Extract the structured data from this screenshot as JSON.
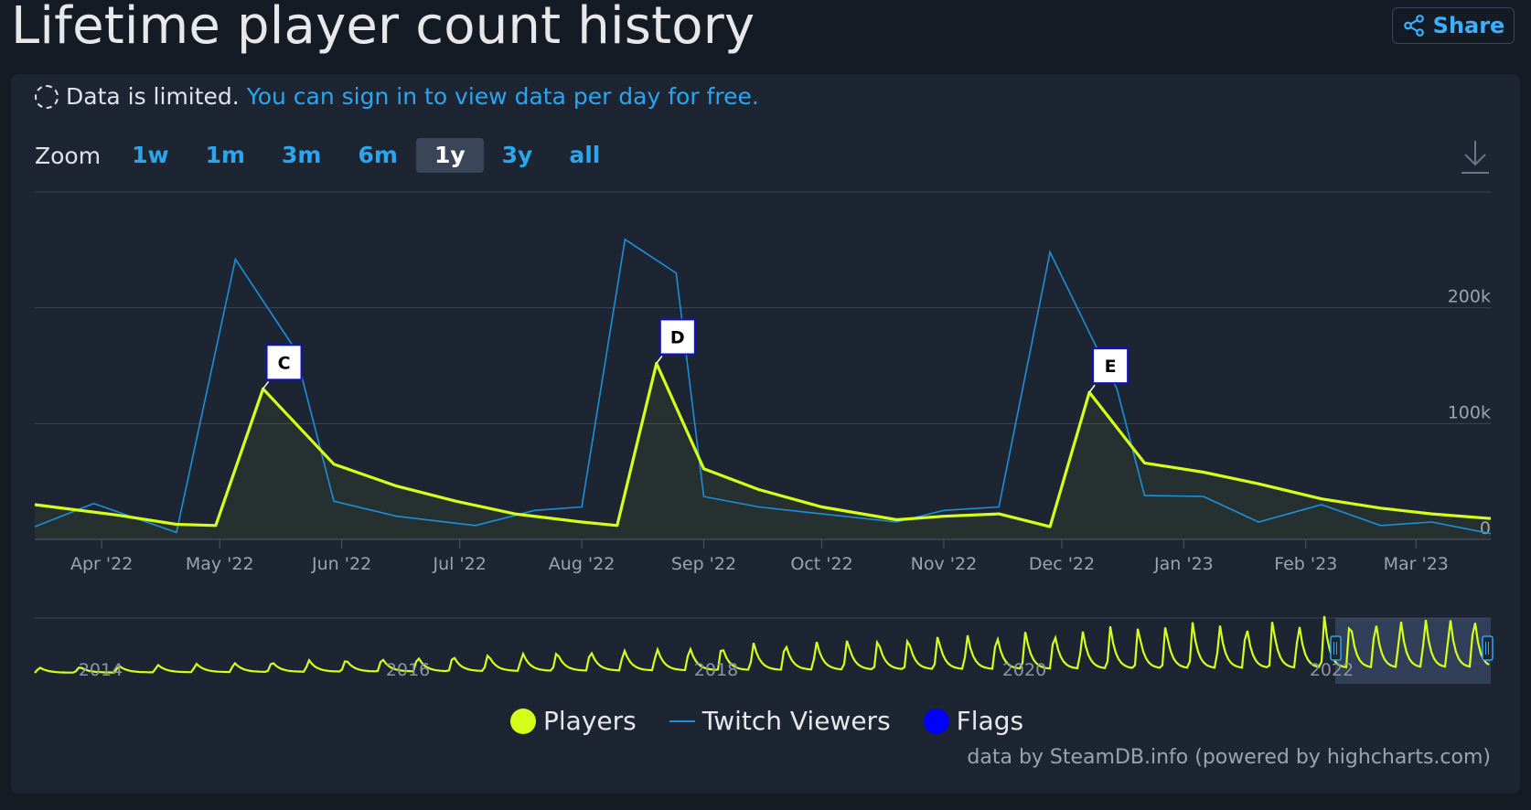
{
  "header": {
    "title": "Lifetime player count history",
    "share_label": "Share"
  },
  "notice": {
    "text": "Data is limited.",
    "link": "You can sign in to view data per day for free."
  },
  "zoom": {
    "label": "Zoom",
    "options": [
      "1w",
      "1m",
      "3m",
      "6m",
      "1y",
      "3y",
      "all"
    ],
    "active": "1y"
  },
  "legend": {
    "players": "Players",
    "twitch": "Twitch Viewers",
    "flags": "Flags"
  },
  "credit": "data by SteamDB.info (powered by highcharts.com)",
  "colors": {
    "players": "#d4ff1a",
    "twitch": "#1a90d8",
    "flags": "#0000ff",
    "accent": "#2aa6f0"
  },
  "chart_data": {
    "type": "line",
    "x_ticks": [
      "Apr '22",
      "May '22",
      "Jun '22",
      "Jul '22",
      "Aug '22",
      "Sep '22",
      "Oct '22",
      "Nov '22",
      "Dec '22",
      "Jan '23",
      "Feb '23",
      "Mar '23"
    ],
    "x_range": [
      "2022-03-15",
      "2023-03-20"
    ],
    "y_ticks": [
      "0",
      "100k",
      "200k"
    ],
    "ylim": [
      0,
      300000
    ],
    "series": [
      {
        "name": "Players",
        "points": [
          [
            "2022-03-15",
            30000
          ],
          [
            "2022-04-05",
            21000
          ],
          [
            "2022-04-20",
            13000
          ],
          [
            "2022-04-30",
            12000
          ],
          [
            "2022-05-12",
            130000
          ],
          [
            "2022-05-30",
            65000
          ],
          [
            "2022-06-15",
            46000
          ],
          [
            "2022-06-30",
            33000
          ],
          [
            "2022-07-15",
            22000
          ],
          [
            "2022-08-01",
            15000
          ],
          [
            "2022-08-10",
            12000
          ],
          [
            "2022-08-20",
            152000
          ],
          [
            "2022-09-01",
            61000
          ],
          [
            "2022-09-15",
            43000
          ],
          [
            "2022-10-01",
            28000
          ],
          [
            "2022-10-20",
            17000
          ],
          [
            "2022-11-01",
            20000
          ],
          [
            "2022-11-15",
            22000
          ],
          [
            "2022-11-28",
            11000
          ],
          [
            "2022-12-08",
            127000
          ],
          [
            "2022-12-22",
            66000
          ],
          [
            "2023-01-06",
            58000
          ],
          [
            "2023-01-20",
            48000
          ],
          [
            "2023-02-05",
            35000
          ],
          [
            "2023-02-20",
            27000
          ],
          [
            "2023-03-05",
            22000
          ],
          [
            "2023-03-20",
            18000
          ]
        ]
      },
      {
        "name": "Twitch Viewers",
        "points": [
          [
            "2022-03-15",
            11000
          ],
          [
            "2022-03-30",
            31000
          ],
          [
            "2022-04-20",
            6000
          ],
          [
            "2022-05-05",
            242000
          ],
          [
            "2022-05-20",
            165000
          ],
          [
            "2022-05-30",
            33000
          ],
          [
            "2022-06-15",
            20000
          ],
          [
            "2022-07-05",
            12000
          ],
          [
            "2022-07-20",
            25000
          ],
          [
            "2022-08-01",
            28000
          ],
          [
            "2022-08-12",
            259000
          ],
          [
            "2022-08-25",
            230000
          ],
          [
            "2022-09-01",
            37000
          ],
          [
            "2022-09-15",
            28000
          ],
          [
            "2022-10-01",
            22000
          ],
          [
            "2022-10-20",
            15000
          ],
          [
            "2022-11-01",
            25000
          ],
          [
            "2022-11-15",
            28000
          ],
          [
            "2022-11-28",
            248000
          ],
          [
            "2022-12-15",
            130000
          ],
          [
            "2022-12-22",
            38000
          ],
          [
            "2023-01-06",
            37000
          ],
          [
            "2023-01-20",
            15000
          ],
          [
            "2023-02-05",
            30000
          ],
          [
            "2023-02-20",
            12000
          ],
          [
            "2023-03-05",
            15000
          ],
          [
            "2023-03-20",
            5000
          ]
        ]
      }
    ],
    "flags": [
      {
        "label": "C",
        "date": "2022-05-12",
        "value": 130000
      },
      {
        "label": "D",
        "date": "2022-08-20",
        "value": 152000
      },
      {
        "label": "E",
        "date": "2022-12-08",
        "value": 127000
      }
    ],
    "navigator": {
      "labels": [
        "2014",
        "2016",
        "2018",
        "2020",
        "2022"
      ],
      "selected_range": [
        "2022-03-15",
        "2023-03-20"
      ]
    },
    "grid": true,
    "legend_position": "bottom-center"
  }
}
